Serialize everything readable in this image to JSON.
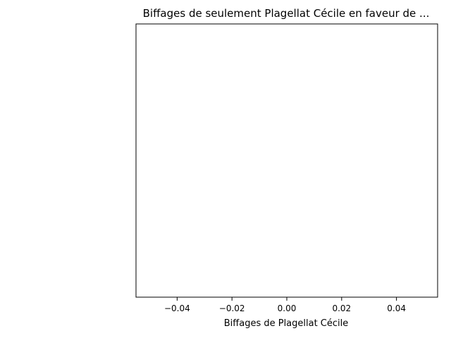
{
  "chart_data": {
    "type": "scatter",
    "title": "Biffages de seulement Plagellat Cécile en faveur de ...",
    "xlabel": "Biffages de Plagellat Cécile",
    "ylabel": "",
    "xlim": [
      -0.055,
      0.055
    ],
    "x_ticks": [
      -0.04,
      -0.02,
      0.0,
      0.02,
      0.04
    ],
    "x_tick_labels": [
      "−0.04",
      "−0.02",
      "0.00",
      "0.02",
      "0.04"
    ],
    "y_ticks": [],
    "series": [],
    "grid": false,
    "legend": "none"
  }
}
